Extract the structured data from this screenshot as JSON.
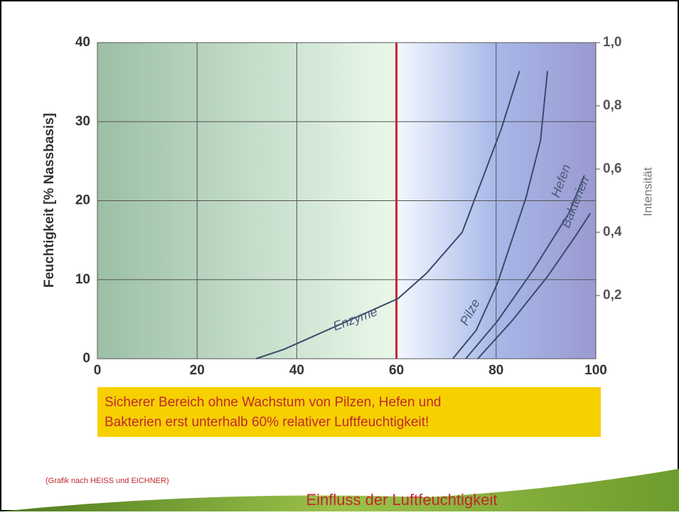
{
  "chart_data": {
    "type": "line",
    "ylabel": "Feuchtigkeit [% Nassbasis]",
    "y2label": "Intensität",
    "xlim": [
      0,
      100
    ],
    "xticks": [
      0,
      20,
      40,
      60,
      80,
      100
    ],
    "ylim": [
      0,
      40
    ],
    "yticks": [
      0,
      10,
      20,
      30,
      40
    ],
    "y2lim": [
      0,
      1
    ],
    "y2ticks": [
      {
        "value": 0.2,
        "label": "0,2"
      },
      {
        "value": 0.4,
        "label": "0,4"
      },
      {
        "value": 0.6,
        "label": "0,6"
      },
      {
        "value": 0.8,
        "label": "0,8"
      },
      {
        "value": 1.0,
        "label": "1,0"
      }
    ],
    "grid": true,
    "vline": {
      "x": 60,
      "color": "#c0282e"
    },
    "series": [
      {
        "name": "Enzyme",
        "color": "#3a4a6a",
        "axis": "y2",
        "x": [
          31.8,
          37.5,
          44.6,
          54.6,
          60.3,
          66,
          73.2,
          81.1,
          84.7
        ],
        "values": [
          0,
          0.03,
          0.08,
          0.15,
          0.19,
          0.27,
          0.4,
          0.73,
          0.91
        ]
      },
      {
        "name": "Pilze",
        "color": "#3a4a6a",
        "axis": "y2",
        "x": [
          71.3,
          76,
          80.3,
          86,
          88.9,
          90.3
        ],
        "values": [
          0,
          0.09,
          0.24,
          0.51,
          0.69,
          0.91
        ]
      },
      {
        "name": "Hefen",
        "color": "#3a4a6a",
        "axis": "y2",
        "x": [
          73.9,
          80.3,
          87.4,
          94.6,
          97.7
        ],
        "values": [
          0,
          0.12,
          0.28,
          0.46,
          0.58
        ]
      },
      {
        "name": "Bakterien",
        "color": "#3a4a6a",
        "axis": "y2",
        "x": [
          76.3,
          83.2,
          90.3,
          96,
          98.9
        ],
        "values": [
          0,
          0.12,
          0.26,
          0.39,
          0.46
        ]
      }
    ]
  },
  "slide": {
    "note": [
      "Sicherer Bereich ohne Wachstum von Pilzen, Hefen und",
      "Bakterien erst unterhalb 60% relativer Luftfeuchtigkeit!"
    ],
    "source": "(Grafik nach HEISS und EICHNER)",
    "title": "Einfluss der Luftfeuchtigkeit"
  }
}
